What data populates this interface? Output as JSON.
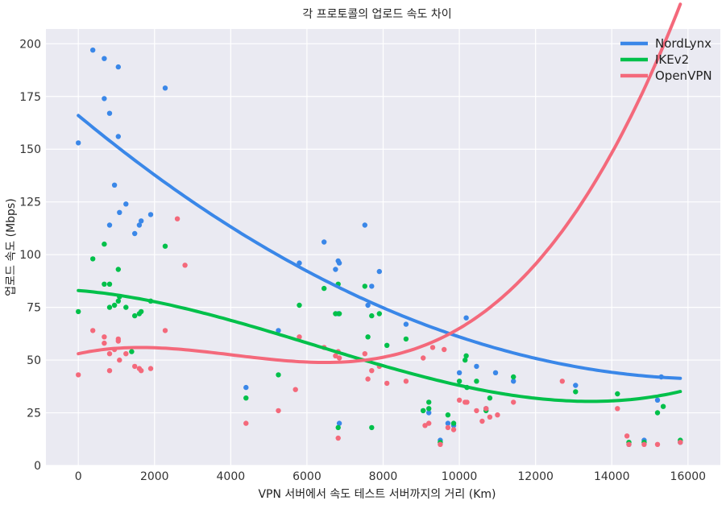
{
  "chart_data": {
    "type": "scatter",
    "title": "각 프로토콜의 업로드 속도 차이",
    "xlabel": "VPN 서버에서 속도 테스트 서버까지의 거리 (Km)",
    "ylabel": "업로드 속도 (Mbps)",
    "xlim": [
      -850,
      16850
    ],
    "ylim": [
      0,
      207
    ],
    "xticks": [
      "0",
      "2000",
      "4000",
      "6000",
      "8000",
      "10000",
      "12000",
      "14000",
      "16000"
    ],
    "yticks": [
      "0",
      "25",
      "50",
      "75",
      "100",
      "125",
      "150",
      "175",
      "200"
    ],
    "grid": true,
    "legend": "top-right",
    "series": [
      {
        "name": "NordLynx",
        "color": "#3a87e8",
        "points": [
          [
            0,
            153
          ],
          [
            380,
            197
          ],
          [
            680,
            193
          ],
          [
            680,
            174
          ],
          [
            820,
            167
          ],
          [
            820,
            114
          ],
          [
            950,
            133
          ],
          [
            1050,
            189
          ],
          [
            1050,
            156
          ],
          [
            1080,
            120
          ],
          [
            1250,
            124
          ],
          [
            1480,
            110
          ],
          [
            1600,
            114
          ],
          [
            1650,
            116
          ],
          [
            1900,
            119
          ],
          [
            2280,
            179
          ],
          [
            4400,
            37
          ],
          [
            5250,
            64
          ],
          [
            5800,
            96
          ],
          [
            6450,
            106
          ],
          [
            6750,
            93
          ],
          [
            6820,
            97
          ],
          [
            6850,
            96
          ],
          [
            6820,
            72
          ],
          [
            6850,
            20
          ],
          [
            7520,
            114
          ],
          [
            7600,
            76
          ],
          [
            7700,
            85
          ],
          [
            7900,
            92
          ],
          [
            8600,
            67
          ],
          [
            9050,
            26
          ],
          [
            9200,
            25
          ],
          [
            9500,
            12
          ],
          [
            9700,
            20
          ],
          [
            9850,
            19
          ],
          [
            10000,
            44
          ],
          [
            10180,
            70
          ],
          [
            10450,
            47
          ],
          [
            10700,
            27
          ],
          [
            10950,
            44
          ],
          [
            11420,
            40
          ],
          [
            13050,
            38
          ],
          [
            14450,
            10
          ],
          [
            14850,
            12
          ],
          [
            15200,
            31
          ],
          [
            15300,
            42
          ],
          [
            15800,
            11
          ]
        ],
        "trend": [
          166,
          -0.015,
          4.5e-07
        ]
      },
      {
        "name": "IKEv2",
        "color": "#00c04a",
        "points": [
          [
            0,
            73
          ],
          [
            380,
            98
          ],
          [
            680,
            105
          ],
          [
            680,
            86
          ],
          [
            820,
            86
          ],
          [
            820,
            75
          ],
          [
            950,
            76
          ],
          [
            1050,
            78
          ],
          [
            1050,
            93
          ],
          [
            1080,
            80
          ],
          [
            1250,
            75
          ],
          [
            1400,
            54
          ],
          [
            1480,
            71
          ],
          [
            1600,
            72
          ],
          [
            1650,
            73
          ],
          [
            1900,
            78
          ],
          [
            2280,
            104
          ],
          [
            4400,
            32
          ],
          [
            5250,
            43
          ],
          [
            5800,
            76
          ],
          [
            6450,
            84
          ],
          [
            6750,
            72
          ],
          [
            6820,
            86
          ],
          [
            6850,
            72
          ],
          [
            6820,
            18
          ],
          [
            7520,
            85
          ],
          [
            7600,
            61
          ],
          [
            7700,
            71
          ],
          [
            7700,
            18
          ],
          [
            7900,
            72
          ],
          [
            8100,
            57
          ],
          [
            8600,
            60
          ],
          [
            9050,
            26
          ],
          [
            9200,
            30
          ],
          [
            9200,
            27
          ],
          [
            9500,
            11
          ],
          [
            9700,
            24
          ],
          [
            9850,
            20
          ],
          [
            10000,
            40
          ],
          [
            10150,
            50
          ],
          [
            10180,
            52
          ],
          [
            10200,
            37
          ],
          [
            10450,
            40
          ],
          [
            10700,
            26
          ],
          [
            10800,
            32
          ],
          [
            11420,
            42
          ],
          [
            13050,
            35
          ],
          [
            14150,
            34
          ],
          [
            14450,
            11
          ],
          [
            14850,
            11
          ],
          [
            15200,
            25
          ],
          [
            15350,
            28
          ],
          [
            15800,
            12
          ]
        ],
        "trend": [
          83,
          -0.0015,
          -6.5e-07,
          3.5e-11
        ]
      },
      {
        "name": "OpenVPN",
        "color": "#f4697b",
        "points": [
          [
            0,
            43
          ],
          [
            380,
            64
          ],
          [
            680,
            61
          ],
          [
            680,
            58
          ],
          [
            820,
            45
          ],
          [
            820,
            53
          ],
          [
            950,
            55
          ],
          [
            1050,
            59
          ],
          [
            1050,
            60
          ],
          [
            1080,
            50
          ],
          [
            1250,
            53
          ],
          [
            1480,
            47
          ],
          [
            1600,
            46
          ],
          [
            1650,
            45
          ],
          [
            1900,
            46
          ],
          [
            2280,
            64
          ],
          [
            2600,
            117
          ],
          [
            2800,
            95
          ],
          [
            4400,
            20
          ],
          [
            5250,
            26
          ],
          [
            5700,
            36
          ],
          [
            5800,
            61
          ],
          [
            6450,
            56
          ],
          [
            6750,
            52
          ],
          [
            6820,
            54
          ],
          [
            6850,
            51
          ],
          [
            6820,
            13
          ],
          [
            7520,
            53
          ],
          [
            7600,
            41
          ],
          [
            7700,
            45
          ],
          [
            7900,
            47
          ],
          [
            8100,
            39
          ],
          [
            8600,
            40
          ],
          [
            9050,
            51
          ],
          [
            9100,
            19
          ],
          [
            9200,
            20
          ],
          [
            9300,
            56
          ],
          [
            9500,
            10
          ],
          [
            9600,
            55
          ],
          [
            9700,
            18
          ],
          [
            9850,
            17
          ],
          [
            10000,
            31
          ],
          [
            10150,
            30
          ],
          [
            10200,
            30
          ],
          [
            10450,
            26
          ],
          [
            10600,
            21
          ],
          [
            10700,
            27
          ],
          [
            10800,
            23
          ],
          [
            11000,
            24
          ],
          [
            11420,
            30
          ],
          [
            12700,
            40
          ],
          [
            14150,
            27
          ],
          [
            14400,
            14
          ],
          [
            14450,
            10
          ],
          [
            14850,
            10
          ],
          [
            15200,
            10
          ],
          [
            15800,
            11
          ]
        ],
        "trend": [
          53,
          0.004,
          -1.55e-06,
          1.32e-10,
          -5e-16
        ]
      }
    ]
  }
}
